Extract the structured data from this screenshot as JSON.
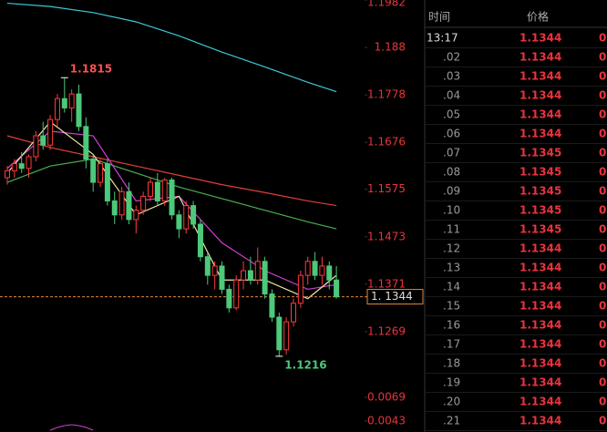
{
  "chart_data": {
    "type": "candlestick",
    "open": [
      1.16,
      1.1615,
      1.163,
      1.162,
      1.1645,
      1.169,
      1.167,
      1.1725,
      1.177,
      1.175,
      1.178,
      1.171,
      1.164,
      1.159,
      1.163,
      1.155,
      1.152,
      1.157,
      1.151,
      1.153,
      1.156,
      1.159,
      1.155,
      1.1595,
      1.152,
      1.149,
      1.154,
      1.15,
      1.143,
      1.139,
      1.141,
      1.136,
      1.132,
      1.138,
      1.14,
      1.138,
      1.142,
      1.135,
      1.13,
      1.123,
      1.129,
      1.133,
      1.139,
      1.142,
      1.139,
      1.141,
      1.138
    ],
    "high": [
      1.1625,
      1.164,
      1.1655,
      1.165,
      1.17,
      1.172,
      1.1735,
      1.178,
      1.1815,
      1.179,
      1.18,
      1.173,
      1.165,
      1.164,
      1.164,
      1.157,
      1.158,
      1.159,
      1.154,
      1.157,
      1.16,
      1.161,
      1.16,
      1.16,
      1.153,
      1.155,
      1.155,
      1.151,
      1.144,
      1.142,
      1.142,
      1.137,
      1.139,
      1.142,
      1.143,
      1.145,
      1.143,
      1.136,
      1.131,
      1.13,
      1.134,
      1.14,
      1.143,
      1.144,
      1.143,
      1.142,
      1.141
    ],
    "low": [
      1.1585,
      1.16,
      1.161,
      1.16,
      1.1635,
      1.166,
      1.166,
      1.171,
      1.174,
      1.172,
      1.17,
      1.162,
      1.157,
      1.158,
      1.154,
      1.15,
      1.151,
      1.15,
      1.148,
      1.152,
      1.155,
      1.154,
      1.154,
      1.151,
      1.147,
      1.148,
      1.149,
      1.142,
      1.137,
      1.136,
      1.135,
      1.131,
      1.1315,
      1.136,
      1.137,
      1.137,
      1.134,
      1.129,
      1.1216,
      1.122,
      1.128,
      1.132,
      1.137,
      1.138,
      1.137,
      1.136,
      1.134
    ],
    "close": [
      1.1615,
      1.163,
      1.162,
      1.1645,
      1.169,
      1.167,
      1.1725,
      1.177,
      1.175,
      1.178,
      1.171,
      1.164,
      1.159,
      1.163,
      1.155,
      1.152,
      1.157,
      1.151,
      1.153,
      1.156,
      1.159,
      1.155,
      1.1595,
      1.152,
      1.149,
      1.154,
      1.15,
      1.143,
      1.139,
      1.141,
      1.136,
      1.132,
      1.138,
      1.14,
      1.138,
      1.142,
      1.135,
      1.13,
      1.123,
      1.129,
      1.133,
      1.139,
      1.142,
      1.139,
      1.141,
      1.138,
      1.1344
    ],
    "up_color": "#ff3b3b",
    "down_color": "#4cc97a",
    "ylim": [
      1.1159,
      1.1982
    ],
    "yticks": [
      1.1982,
      1.188,
      1.1778,
      1.1676,
      1.1575,
      1.1473,
      1.1371,
      1.1269
    ],
    "ma": {
      "x": [
        0,
        6,
        12,
        18,
        24,
        30,
        36,
        42,
        46
      ],
      "series": [
        {
          "color": "#3ec9d6",
          "values": [
            1.1975,
            1.1968,
            1.1955,
            1.1935,
            1.1905,
            1.187,
            1.1838,
            1.1805,
            1.1785
          ]
        },
        {
          "color": "#e0403a",
          "values": [
            1.169,
            1.1665,
            1.1645,
            1.1625,
            1.1605,
            1.1585,
            1.1568,
            1.155,
            1.154
          ]
        },
        {
          "color": "#4caf50",
          "values": [
            1.159,
            1.1625,
            1.164,
            1.161,
            1.158,
            1.1555,
            1.153,
            1.1505,
            1.149
          ]
        },
        {
          "color": "#d040d0",
          "values": [
            1.162,
            1.17,
            1.169,
            1.155,
            1.156,
            1.146,
            1.14,
            1.136,
            1.137
          ]
        },
        {
          "color": "#f0e8a0",
          "values": [
            1.161,
            1.172,
            1.165,
            1.152,
            1.156,
            1.138,
            1.138,
            1.134,
            1.139
          ]
        }
      ]
    },
    "annotations": [
      {
        "text": "1.1815",
        "value": 1.1815,
        "x": 8,
        "color": "#ff5050"
      },
      {
        "text": "1.1216",
        "value": 1.1216,
        "x": 38,
        "color": "#4cc97a"
      }
    ],
    "last_price": {
      "value": 1.1344,
      "label": "1. 1344"
    },
    "indicator": {
      "ylim": [
        0.0031,
        0.0081
      ],
      "yticks": [
        0.0069,
        0.0043
      ],
      "x": [
        6,
        7,
        8,
        9,
        10,
        11,
        12
      ],
      "series": [
        {
          "color": "#d040d0",
          "values": [
            0.0033,
            0.0036,
            0.0038,
            0.0039,
            0.0038,
            0.0036,
            0.0033
          ]
        }
      ]
    }
  },
  "table": {
    "headers": [
      "时间",
      "价格"
    ],
    "rows": [
      [
        "13:17",
        "1.1344",
        "0"
      ],
      [
        ".02",
        "1.1344",
        "0"
      ],
      [
        ".03",
        "1.1344",
        "0"
      ],
      [
        ".04",
        "1.1344",
        "0"
      ],
      [
        ".05",
        "1.1344",
        "0"
      ],
      [
        ".06",
        "1.1344",
        "0"
      ],
      [
        ".07",
        "1.1345",
        "0"
      ],
      [
        ".08",
        "1.1345",
        "0"
      ],
      [
        ".09",
        "1.1345",
        "0"
      ],
      [
        ".10",
        "1.1345",
        "0"
      ],
      [
        ".11",
        "1.1345",
        "0"
      ],
      [
        ".12",
        "1.1344",
        "0"
      ],
      [
        ".13",
        "1.1344",
        "0"
      ],
      [
        ".14",
        "1.1344",
        "0"
      ],
      [
        ".15",
        "1.1344",
        "0"
      ],
      [
        ".16",
        "1.1344",
        "0"
      ],
      [
        ".17",
        "1.1344",
        "0"
      ],
      [
        ".18",
        "1.1344",
        "0"
      ],
      [
        ".19",
        "1.1344",
        "0"
      ],
      [
        ".20",
        "1.1344",
        "0"
      ],
      [
        ".21",
        "1.1344",
        "0"
      ]
    ]
  }
}
